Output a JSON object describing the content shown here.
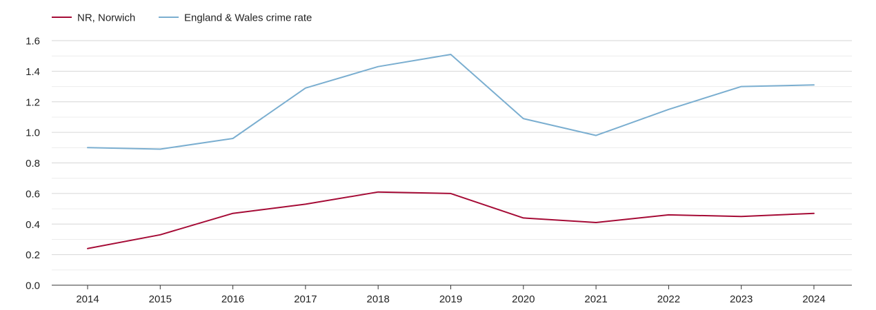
{
  "chart_data": {
    "type": "line",
    "title": "",
    "xlabel": "",
    "ylabel": "",
    "categories": [
      "2014",
      "2015",
      "2016",
      "2017",
      "2018",
      "2019",
      "2020",
      "2021",
      "2022",
      "2023",
      "2024"
    ],
    "ylim": [
      0,
      1.6
    ],
    "yticks": [
      "0.0",
      "0.2",
      "0.4",
      "0.6",
      "0.8",
      "1.0",
      "1.2",
      "1.4",
      "1.6"
    ],
    "grid": true,
    "legend_position": "top-left",
    "series": [
      {
        "name": "NR, Norwich",
        "color": "#a50a35",
        "values": [
          0.24,
          0.33,
          0.47,
          0.53,
          0.61,
          0.6,
          0.44,
          0.41,
          0.46,
          0.45,
          0.47
        ]
      },
      {
        "name": "England & Wales crime rate",
        "color": "#7aaed0",
        "values": [
          0.9,
          0.89,
          0.96,
          1.29,
          1.43,
          1.51,
          1.09,
          0.98,
          1.15,
          1.3,
          1.31
        ]
      }
    ]
  }
}
